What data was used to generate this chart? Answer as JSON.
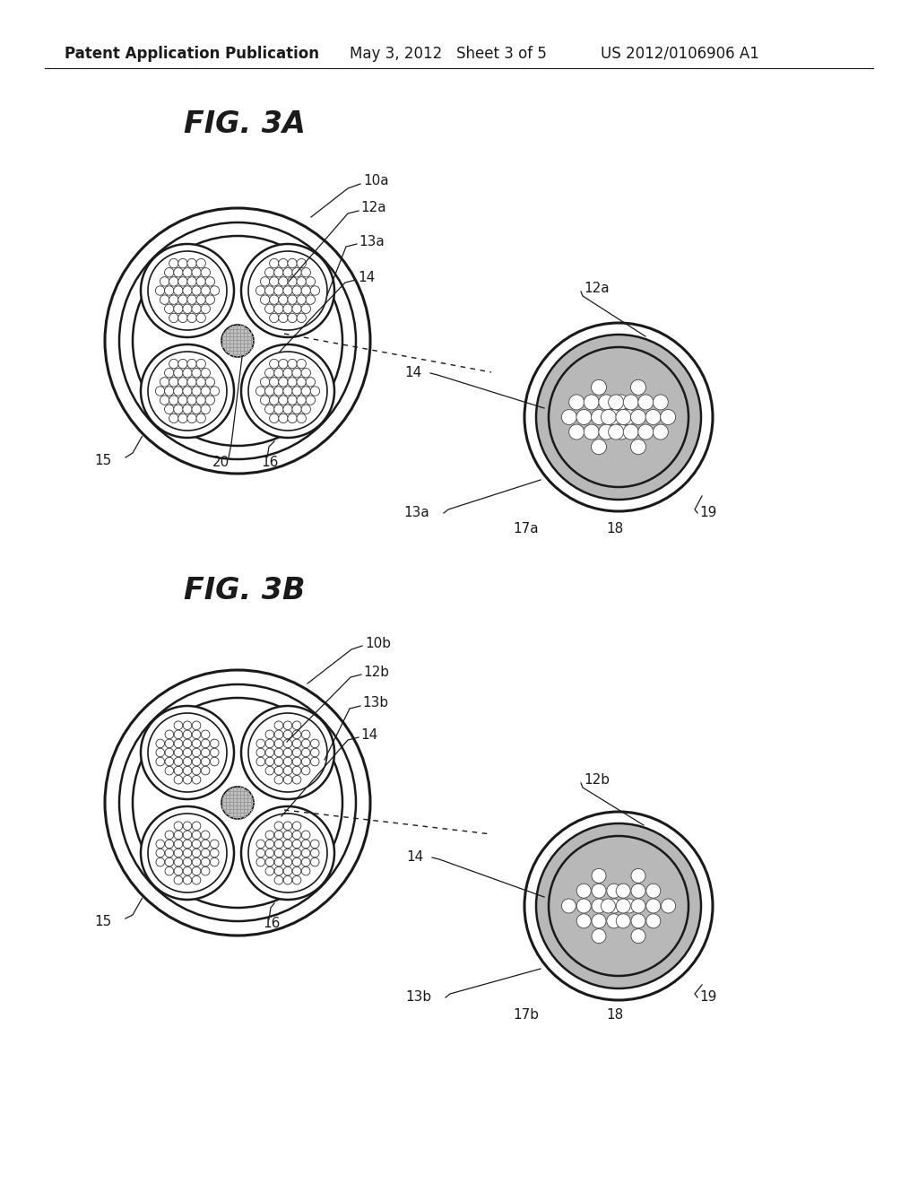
{
  "bg_color": "#ffffff",
  "line_color": "#1a1a1a",
  "gray_fill": "#b8b8b8",
  "light_gray": "#e0e0e0",
  "white": "#ffffff",
  "header_text": "Patent Application Publication",
  "header_date": "May 3, 2012   Sheet 3 of 5",
  "header_patent": "US 2012/0106906 A1",
  "fig3a_label": "FIG. 3A",
  "fig3b_label": "FIG. 3B",
  "font_size_header": 12,
  "font_size_fig": 24,
  "font_size_label": 11
}
